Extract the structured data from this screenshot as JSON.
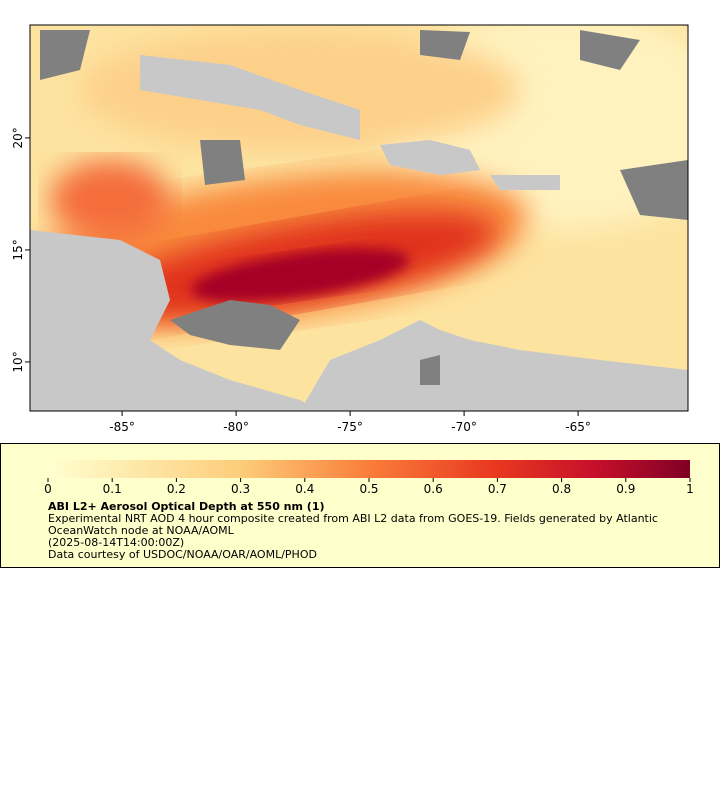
{
  "map": {
    "xlim": [
      -89.04,
      -60.18
    ],
    "ylim": [
      7.81,
      25.04
    ],
    "xticks": [
      {
        "value": -85,
        "label": "-85°"
      },
      {
        "value": -80,
        "label": "-80°"
      },
      {
        "value": -75,
        "label": "-75°"
      },
      {
        "value": -70,
        "label": "-70°"
      },
      {
        "value": -65,
        "label": "-65°"
      }
    ],
    "yticks": [
      {
        "value": 10,
        "label": "10°"
      },
      {
        "value": 15,
        "label": "15°"
      },
      {
        "value": 20,
        "label": "20°"
      }
    ]
  },
  "colorbar": {
    "lim": [
      0,
      1
    ],
    "ticks": [
      0,
      0.1,
      0.2,
      0.3,
      0.4,
      0.5,
      0.6,
      0.7,
      0.8,
      0.9,
      1
    ]
  },
  "legend": {
    "title": "ABI L2+ Aerosol Optical Depth at 550 nm (1)",
    "description": "Experimental NRT AOD 4 hour composite created from ABI L2 data from GOES-19. Fields generated by Atlantic OceanWatch node at NOAA/AOML",
    "time": "(2025-08-14T14:00:00Z)",
    "credit": "Data courtesy of USDOC/NOAA/OAR/AOML/PHOD"
  }
}
